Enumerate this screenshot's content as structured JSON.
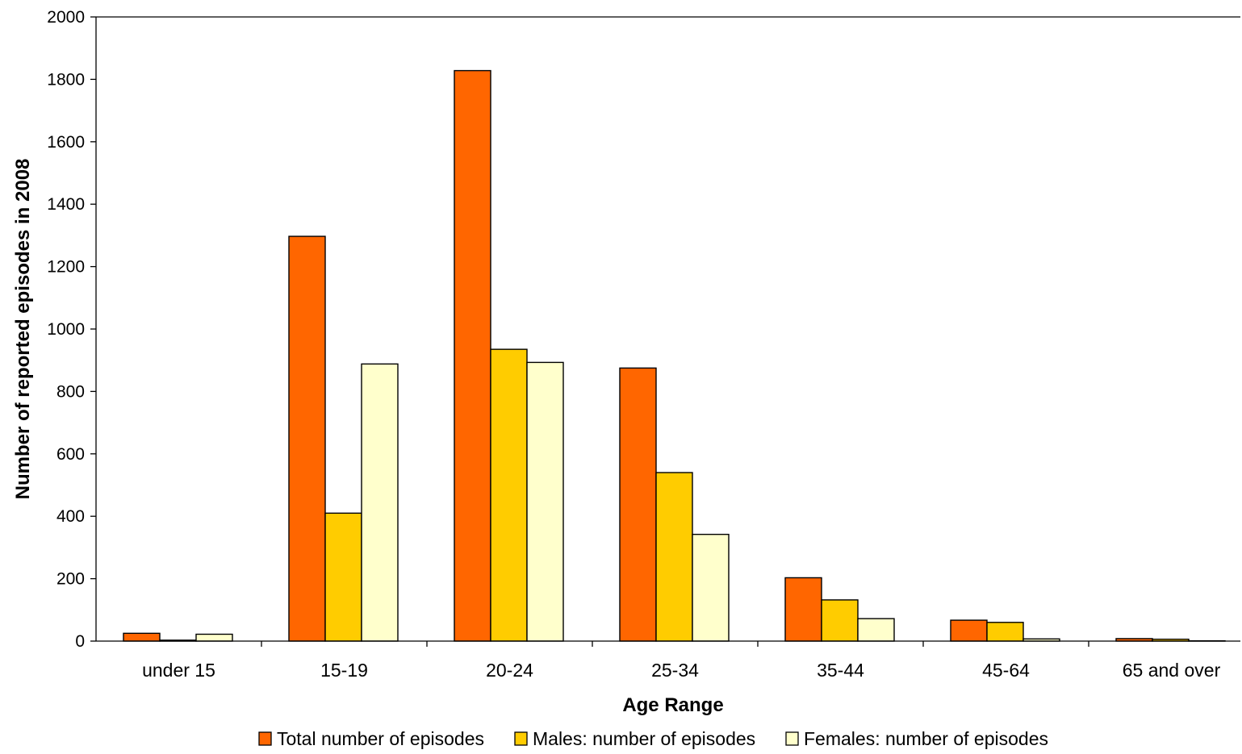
{
  "chart_data": {
    "type": "bar",
    "title": "",
    "xlabel": "Age Range",
    "ylabel": "Number of reported episodes in 2008",
    "ylim": [
      0,
      2000
    ],
    "yticks": [
      0,
      200,
      400,
      600,
      800,
      1000,
      1200,
      1400,
      1600,
      1800,
      2000
    ],
    "ytick_labels": [
      "0",
      "200",
      "400",
      "600",
      "800",
      "1000",
      "1200",
      "1400",
      "1600",
      "1800",
      "2000"
    ],
    "categories": [
      "under 15",
      "15-19",
      "20-24",
      "25-34",
      "35-44",
      "45-64",
      "65 and over"
    ],
    "series": [
      {
        "name": "Total number of episodes",
        "color": "#ff6600",
        "values": [
          25,
          1297,
          1828,
          875,
          203,
          67,
          8
        ]
      },
      {
        "name": "Males: number of episodes",
        "color": "#ffcc00",
        "values": [
          3,
          410,
          935,
          540,
          132,
          60,
          6
        ]
      },
      {
        "name": "Females: number of episodes",
        "color": "#ffffcc",
        "values": [
          22,
          888,
          893,
          342,
          72,
          7,
          1
        ]
      }
    ],
    "grid": false,
    "legend_position": "bottom"
  }
}
